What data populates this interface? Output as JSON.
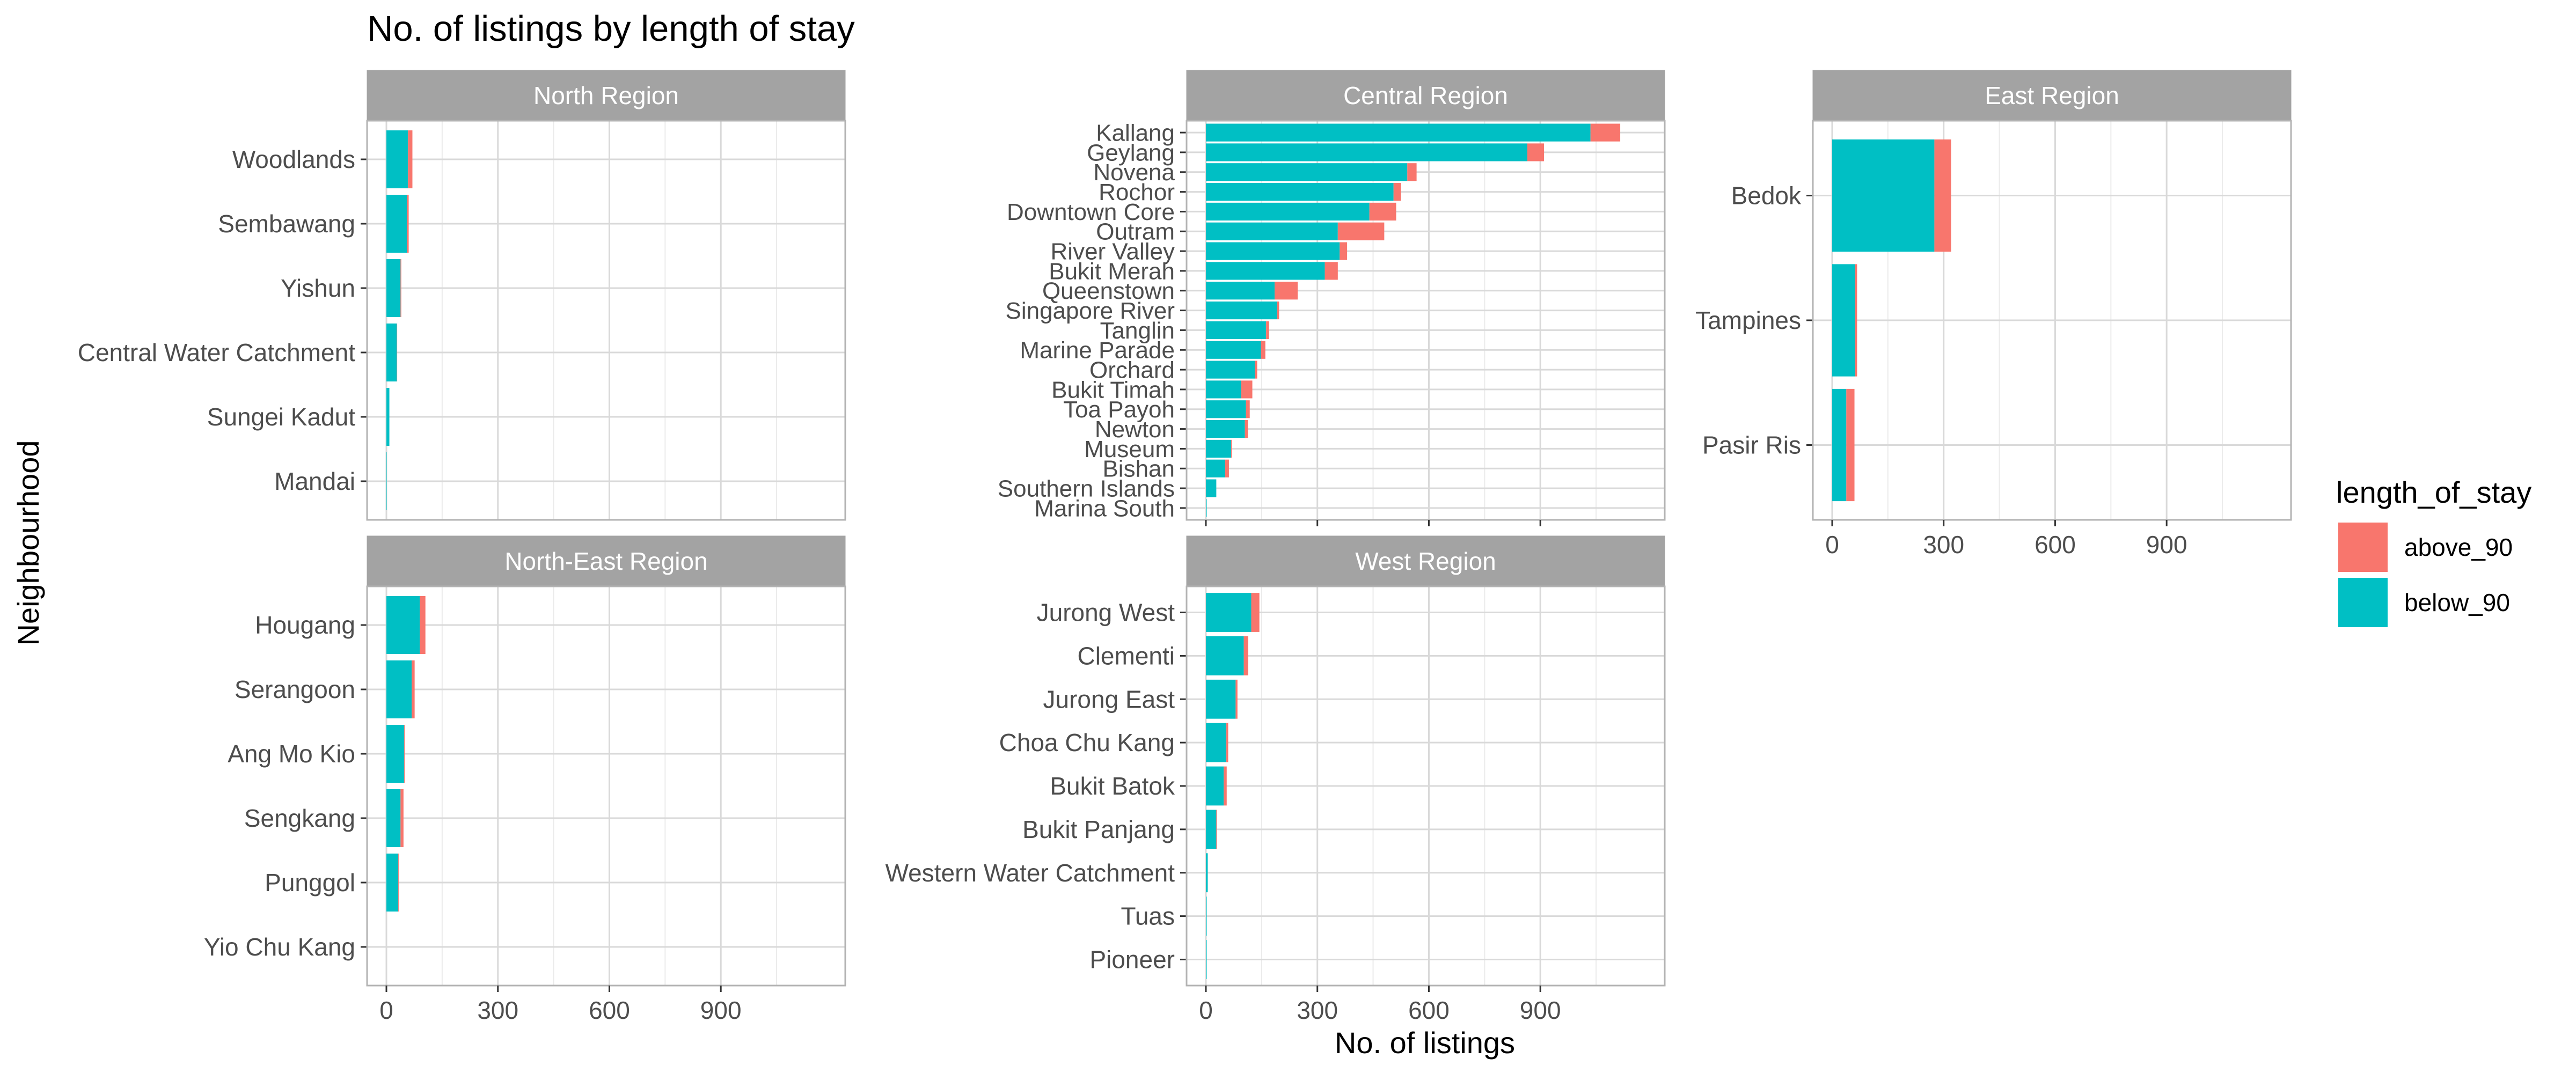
{
  "chart_data": {
    "type": "bar",
    "orientation": "horizontal",
    "stacked": true,
    "title": "No. of listings by length of stay",
    "xlabel": "No. of listings",
    "ylabel": "Neighbourhood",
    "xlim": [
      0,
      1100
    ],
    "x_ticks": [
      0,
      300,
      600,
      900
    ],
    "x_tick_labels": [
      "0",
      "300",
      "600",
      "900"
    ],
    "grid": true,
    "legend": {
      "title": "length_of_stay",
      "position": "right",
      "entries": [
        {
          "name": "above_90",
          "color": "#F8766D"
        },
        {
          "name": "below_90",
          "color": "#00BFC4"
        }
      ]
    },
    "stack_order": [
      "below_90",
      "above_90"
    ],
    "facets": [
      {
        "name": "North Region",
        "categories": [
          "Mandai",
          "Sungei Kadut",
          "Central Water Catchment",
          "Yishun",
          "Sembawang",
          "Woodlands"
        ],
        "series": [
          {
            "name": "below_90",
            "values": [
              1,
              8,
              28,
              38,
              55,
              58
            ]
          },
          {
            "name": "above_90",
            "values": [
              0,
              0,
              1,
              2,
              5,
              12
            ]
          }
        ]
      },
      {
        "name": "Central Region",
        "categories": [
          "Marina South",
          "Southern Islands",
          "Bishan",
          "Museum",
          "Newton",
          "Toa Payoh",
          "Bukit Timah",
          "Orchard",
          "Marine Parade",
          "Tanglin",
          "Singapore River",
          "Queenstown",
          "Bukit Merah",
          "River Valley",
          "Outram",
          "Downtown Core",
          "Rochor",
          "Novena",
          "Geylang",
          "Kallang"
        ],
        "series": [
          {
            "name": "below_90",
            "values": [
              2,
              28,
              52,
              68,
              105,
              108,
              95,
              132,
              148,
              162,
              192,
              185,
              320,
              360,
              355,
              440,
              505,
              542,
              865,
              1035
            ]
          },
          {
            "name": "above_90",
            "values": [
              0,
              0,
              10,
              2,
              8,
              10,
              30,
              6,
              12,
              8,
              5,
              62,
              35,
              20,
              125,
              72,
              20,
              25,
              45,
              80
            ]
          }
        ]
      },
      {
        "name": "East Region",
        "categories": [
          "Pasir Ris",
          "Tampines",
          "Bedok"
        ],
        "series": [
          {
            "name": "below_90",
            "values": [
              38,
              62,
              275
            ]
          },
          {
            "name": "above_90",
            "values": [
              22,
              5,
              45
            ]
          }
        ]
      },
      {
        "name": "North-East Region",
        "categories": [
          "Yio Chu Kang",
          "Punggol",
          "Sengkang",
          "Ang Mo Kio",
          "Serangoon",
          "Hougang"
        ],
        "series": [
          {
            "name": "below_90",
            "values": [
              0,
              32,
              38,
              48,
              68,
              90
            ]
          },
          {
            "name": "above_90",
            "values": [
              0,
              2,
              8,
              2,
              8,
              15
            ]
          }
        ]
      },
      {
        "name": "West Region",
        "categories": [
          "Pioneer",
          "Tuas",
          "Western Water Catchment",
          "Bukit Panjang",
          "Bukit Batok",
          "Choa Chu Kang",
          "Jurong East",
          "Clementi",
          "Jurong West"
        ],
        "series": [
          {
            "name": "below_90",
            "values": [
              2,
              2,
              5,
              28,
              48,
              55,
              80,
              102,
              122
            ]
          },
          {
            "name": "above_90",
            "values": [
              0,
              0,
              0,
              2,
              8,
              5,
              5,
              12,
              22
            ]
          }
        ]
      }
    ]
  }
}
